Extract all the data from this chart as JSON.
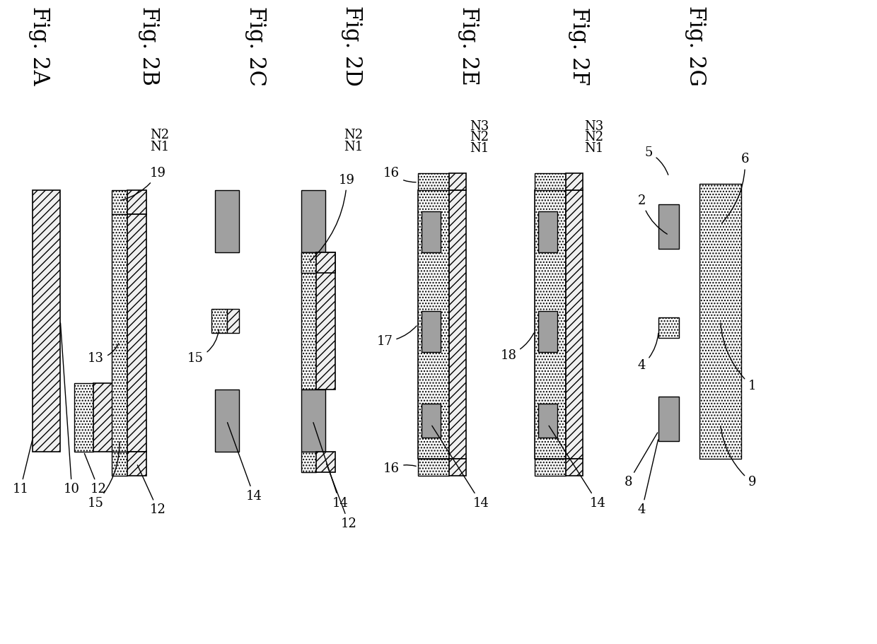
{
  "background": "#ffffff",
  "fig_labels": [
    "Fig. 2A",
    "Fig. 2B",
    "Fig. 2C",
    "Fig. 2D",
    "Fig. 2E",
    "Fig. 2F",
    "Fig. 2G"
  ],
  "fig_label_fontsize": 22,
  "label_fontsize": 13
}
